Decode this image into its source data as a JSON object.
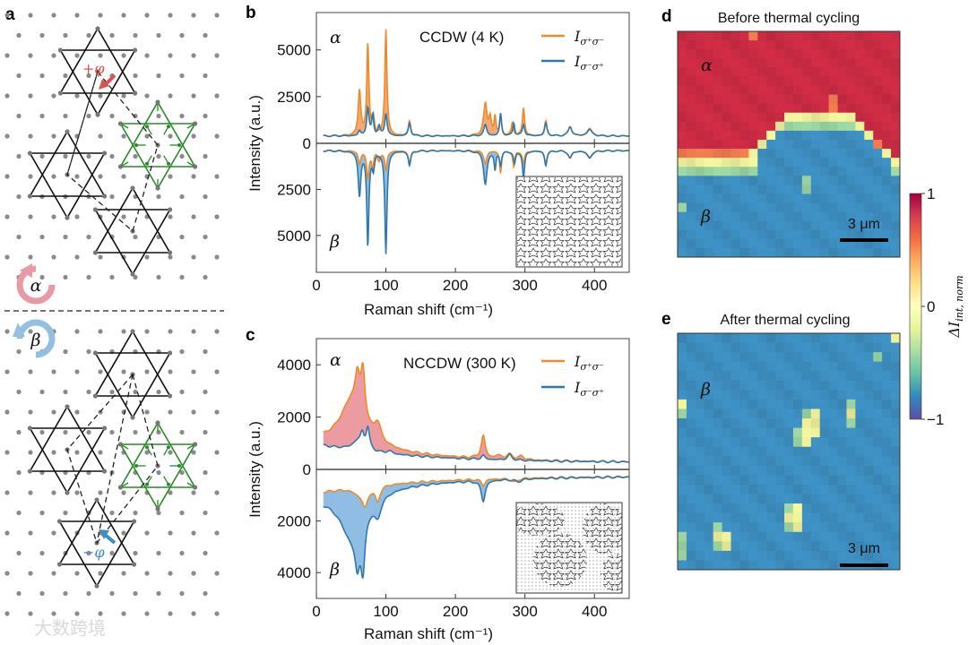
{
  "panel_labels": {
    "a": "a",
    "b": "b",
    "c": "c",
    "d": "d",
    "e": "e"
  },
  "panel_a": {
    "alpha": "α",
    "beta": "β",
    "plus_phi": "+φ",
    "minus_phi": "−φ",
    "colors": {
      "black": "#111111",
      "green": "#2a8a2a",
      "pink": "#e79aa3",
      "blue": "#93bfe0",
      "red": "#d9534f",
      "cyan": "#3d8fc4"
    }
  },
  "watermark": "大数跨境",
  "colors": {
    "orange": "#ef8a2a",
    "blue": "#2f78ad",
    "fill_b_top": "#f29a5a",
    "fill_c_top": "#e98a8f",
    "fill_bottom": "#7db2de"
  },
  "chart_data": [
    {
      "panel": "b",
      "type": "line",
      "title": "CCDW (4 K)",
      "xlabel": "Raman shift (cm⁻¹)",
      "ylabel": "Intensity (a.u.)",
      "xlim": [
        0,
        450
      ],
      "ylim_alpha": [
        0,
        7000
      ],
      "ylim_beta": [
        0,
        7000
      ],
      "xticks": [
        "0",
        "100",
        "200",
        "300",
        "400"
      ],
      "xtick_values": [
        0,
        100,
        200,
        300,
        400
      ],
      "yticks_alpha": [
        "5000",
        "2500",
        "0"
      ],
      "ytick_alpha_values": [
        5000,
        2500,
        0
      ],
      "yticks_beta": [
        "2500",
        "5000"
      ],
      "ytick_beta_values": [
        2500,
        5000
      ],
      "half_labels": {
        "alpha": "α",
        "beta": "β"
      },
      "legend": [
        {
          "symbol": "I",
          "sub": "σ⁺σ⁻",
          "color": "#ef8a2a"
        },
        {
          "symbol": "I",
          "sub": "σ⁻σ⁺",
          "color": "#2f78ad"
        }
      ],
      "series": [
        {
          "name": "Iσ+σ− (α)",
          "half": "alpha",
          "color": "#ef8a2a",
          "baseline": [
            200,
            0,
            100
          ],
          "peaks": [
            [
              62,
              2400,
              2.2
            ],
            [
              74,
              4900,
              1.8
            ],
            [
              100,
              5700,
              1.8
            ],
            [
              82,
              900,
              2
            ],
            [
              134,
              800,
              2
            ],
            [
              243,
              1700,
              3
            ],
            [
              250,
              900,
              2
            ],
            [
              257,
              1000,
              1.5
            ],
            [
              265,
              1100,
              1.6
            ],
            [
              282,
              700,
              1.8
            ],
            [
              298,
              1500,
              1.8
            ],
            [
              330,
              800,
              2
            ],
            [
              365,
              500,
              3
            ],
            [
              393,
              400,
              4
            ]
          ]
        },
        {
          "name": "Iσ−σ+ (α)",
          "half": "alpha",
          "color": "#2f78ad",
          "baseline": [
            200,
            0,
            100
          ],
          "peaks": [
            [
              62,
              250,
              2
            ],
            [
              74,
              1500,
              2
            ],
            [
              81,
              1100,
              1.6
            ],
            [
              90,
              500,
              2
            ],
            [
              100,
              1200,
              2
            ],
            [
              134,
              700,
              2
            ],
            [
              243,
              600,
              2.5
            ],
            [
              265,
              1200,
              1.6
            ],
            [
              284,
              700,
              1.6
            ],
            [
              298,
              600,
              2
            ],
            [
              330,
              700,
              2
            ],
            [
              365,
              500,
              3
            ],
            [
              393,
              350,
              4
            ]
          ]
        },
        {
          "name": "Iσ+σ− (β)",
          "half": "beta",
          "color": "#ef8a2a",
          "baseline": [
            200,
            0,
            100
          ],
          "peaks": [
            [
              62,
              700,
              2
            ],
            [
              74,
              1500,
              2
            ],
            [
              81,
              900,
              1.6
            ],
            [
              90,
              500,
              2
            ],
            [
              100,
              1100,
              2
            ],
            [
              134,
              700,
              2
            ],
            [
              243,
              700,
              2.5
            ],
            [
              265,
              1200,
              1.6
            ],
            [
              284,
              900,
              1.6
            ],
            [
              298,
              700,
              2
            ],
            [
              330,
              700,
              2
            ],
            [
              365,
              400,
              3
            ],
            [
              393,
              350,
              4
            ]
          ]
        },
        {
          "name": "Iσ−σ+ (β)",
          "half": "beta",
          "color": "#2f78ad",
          "baseline": [
            200,
            0,
            100
          ],
          "peaks": [
            [
              62,
              2400,
              2.2
            ],
            [
              74,
              5100,
              1.8
            ],
            [
              100,
              5600,
              1.8
            ],
            [
              82,
              900,
              2
            ],
            [
              134,
              800,
              2
            ],
            [
              243,
              1800,
              3
            ],
            [
              257,
              1000,
              1.5
            ],
            [
              265,
              800,
              1.6
            ],
            [
              285,
              700,
              1.8
            ],
            [
              298,
              1500,
              1.8
            ],
            [
              330,
              800,
              2
            ],
            [
              365,
              400,
              3
            ],
            [
              393,
              400,
              4
            ]
          ]
        }
      ]
    },
    {
      "panel": "c",
      "type": "line",
      "title": "NCCDW (300 K)",
      "xlabel": "Raman shift (cm⁻¹)",
      "ylabel": "Intensity (a.u.)",
      "xlim": [
        0,
        450
      ],
      "ylim_alpha": [
        0,
        5000
      ],
      "ylim_beta": [
        0,
        5000
      ],
      "xticks": [
        "0",
        "100",
        "200",
        "300",
        "400"
      ],
      "xtick_values": [
        0,
        100,
        200,
        300,
        400
      ],
      "yticks_alpha": [
        "4000",
        "2000",
        "0"
      ],
      "ytick_alpha_values": [
        4000,
        2000,
        0
      ],
      "yticks_beta": [
        "2000",
        "4000"
      ],
      "ytick_beta_values": [
        2000,
        4000
      ],
      "half_labels": {
        "alpha": "α",
        "beta": "β"
      },
      "legend": [
        {
          "symbol": "I",
          "sub": "σ⁺σ⁻",
          "color": "#ef8a2a"
        },
        {
          "symbol": "I",
          "sub": "σ⁻σ⁺",
          "color": "#2f78ad"
        }
      ],
      "series": [
        {
          "name": "Iσ+σ− (α)",
          "half": "alpha",
          "color": "#ef8a2a",
          "baseline": [
            120,
            800,
            140
          ],
          "peaks": [
            [
              52,
              1800,
              22
            ],
            [
              59,
              1200,
              4
            ],
            [
              67,
              1800,
              3.5
            ],
            [
              88,
              650,
              6
            ],
            [
              240,
              850,
              3.5
            ],
            [
              262,
              120,
              5
            ],
            [
              278,
              180,
              5
            ],
            [
              295,
              120,
              5
            ]
          ]
        },
        {
          "name": "Iσ−σ+ (α)",
          "half": "alpha",
          "color": "#2f78ad",
          "baseline": [
            120,
            700,
            140
          ],
          "peaks": [
            [
              60,
              350,
              10
            ],
            [
              66,
              450,
              3
            ],
            [
              74,
              800,
              3
            ],
            [
              105,
              100,
              5
            ],
            [
              240,
              150,
              3
            ],
            [
              278,
              200,
              4
            ]
          ]
        },
        {
          "name": "Iσ+σ− (β)",
          "half": "beta",
          "color": "#ef8a2a",
          "baseline": [
            120,
            650,
            140
          ],
          "peaks": [
            [
              60,
              200,
              10
            ],
            [
              70,
              700,
              5
            ],
            [
              88,
              600,
              4
            ],
            [
              240,
              250,
              3
            ],
            [
              285,
              150,
              5
            ]
          ]
        },
        {
          "name": "Iσ−σ+ (β)",
          "half": "beta",
          "color": "#2f78ad",
          "baseline": [
            120,
            800,
            140
          ],
          "peaks": [
            [
              52,
              1800,
              22
            ],
            [
              59,
              1300,
              4
            ],
            [
              67,
              1900,
              3.5
            ],
            [
              88,
              700,
              6
            ],
            [
              240,
              800,
              3.5
            ],
            [
              290,
              100,
              5
            ]
          ]
        }
      ]
    },
    {
      "panel": "d",
      "type": "heatmap",
      "title": "Before thermal cycling",
      "half_labels": {
        "alpha": "α",
        "beta": "β"
      },
      "scale_bar": "3 μm",
      "legend_key": {
        "R": 0.95,
        "o": 0.6,
        "y": 0.05,
        "g": -0.35,
        "B": -0.75
      },
      "rows": [
        "RRRRRRRRoRRRRRRRRRRRRRRRR",
        "RRRRRRRRRRRRRRRRRRRRRRRRR",
        "RRRRRRRRRRRRRRRRRRRRRRRRR",
        "RRRRRRRRRRRRRRRRRRRRRRRRR",
        "RRRRRRRRRRRRRRRRRRRRRRRRR",
        "RRRRRRRRRRRRRRRRRRRRRRRRR",
        "RRRRRRRRRRRRRRRRRRRRRRRRR",
        "RRRRRRRRRRRRRRRRRoRRRRRRR",
        "RRRRRRRRRRRRRRRRRoRRRRRRR",
        "RRRRRRRRRRRRyyyyyyyyRRRRR",
        "RRRRRRRRRRRyggggggggyRRRR",
        "RRRRRRRRRRyBBBBBBBBBByRRR",
        "RRRRRRRRRyBBBBBBBBBBBBoRR",
        "ooooooooyBBBBBBBBBBBBBByR",
        "yyyyyyyyyBBBBBBBBBBBBBBBy",
        "gggggggggBBBBBBBBBBBBBBBg",
        "BBBBBBBBBBBBBBgBBBBBBBBBB",
        "BBBBBBBBBBBBBBgBBBBBBBBBB",
        "BBBBBBBBBBBBBBBBBBBBBBBBB",
        "gBBBBBBBBBBBBBBBBBBBBBBBB",
        "BBBBBBBBBBBBBBBBBBBBBBBBB",
        "BBBBBBBBBBBBBBBBBBBBBBBBB",
        "BBBBBBBBBBBBBBBBBBBBBBBBB",
        "BBBBBBBBBBBBBBBBBBBBBBBBB",
        "BBBBBBBBBBBBBBBBBBBBBBBBB"
      ]
    },
    {
      "panel": "e",
      "type": "heatmap",
      "title": "After thermal cycling",
      "half_labels": {
        "beta": "β"
      },
      "scale_bar": "3 μm",
      "rows": [
        "BBBBBBBBBBBBBBBBBBBBBBBBy",
        "BBBBBBBBBBBBBBBBBBBBBBBBB",
        "BBBBBBBBBBBBBBBBBBBBBBgBB",
        "BBBBBBBBBBBBBBBBBBBBBBBBB",
        "BBBBBBBBBBBBBBBBBBBBBBBBB",
        "BBBBBBBBBBBBBBBBBBBBBBBBB",
        "BBBBBBBBBBBBBBBBBBBBBBBBB",
        "yBBBBBBBBBBBBBBBBBBgBBBBB",
        "gBBBBBBBBBBBBBgyBBByBBBBB",
        "BBBBBBBBBBBBBByyBBBgBBBBB",
        "BBBBBBBBBBBBBgyyBBBBBBBBB",
        "BBBBBBBBBBBBBgyBBBBBBBBBB",
        "BBBBBBBBBBBBBBBBBBBBBBBBB",
        "BBBBBBBBBBBBBBBBBBBBBBBBB",
        "BBBBBBBBBBBBBBBBBBBBBBBBB",
        "BBBBBBBBBBBBBBBBBBBBBBBBB",
        "BBBBBBBBBBBBBBBBBBBBBBBBB",
        "BBBBBBBBBBBBBBBBBBBBBBBBB",
        "BBBBBBBBBBBBgyBBBBBBBBBBB",
        "BBBBBBBBBBBByyBBBBBBBBBBB",
        "BBBBgBBBBBBBgyBBBBBBBBBBB",
        "gBBByyBBBBBBBBBBBBBBBBBBB",
        "gBBBgyBBBBBBBBBBBBBBBBBBB",
        "gBBBBBBBBBBBBBBBBBBBBBBBB",
        "BBBBBBBBBBBBBBBBBBBBBBBBB"
      ]
    }
  ],
  "heatmap_colors": {
    "R": "#cc2b44",
    "o": "#ec7a4f",
    "y": "#eef09a",
    "g": "#9bd4a2",
    "B": "#3d8ec0"
  },
  "colorbar": {
    "ticks": [
      "1",
      "0",
      "−1"
    ],
    "tick_values": [
      1,
      0,
      -1
    ],
    "label_main": "ΔI",
    "label_sub": "int, norm",
    "stops": [
      "#9e0142",
      "#d53e4f",
      "#f46d43",
      "#fdae61",
      "#fee08b",
      "#ffffbf",
      "#e6f598",
      "#abdda4",
      "#66c2a5",
      "#3288bd",
      "#5e4fa2"
    ]
  }
}
